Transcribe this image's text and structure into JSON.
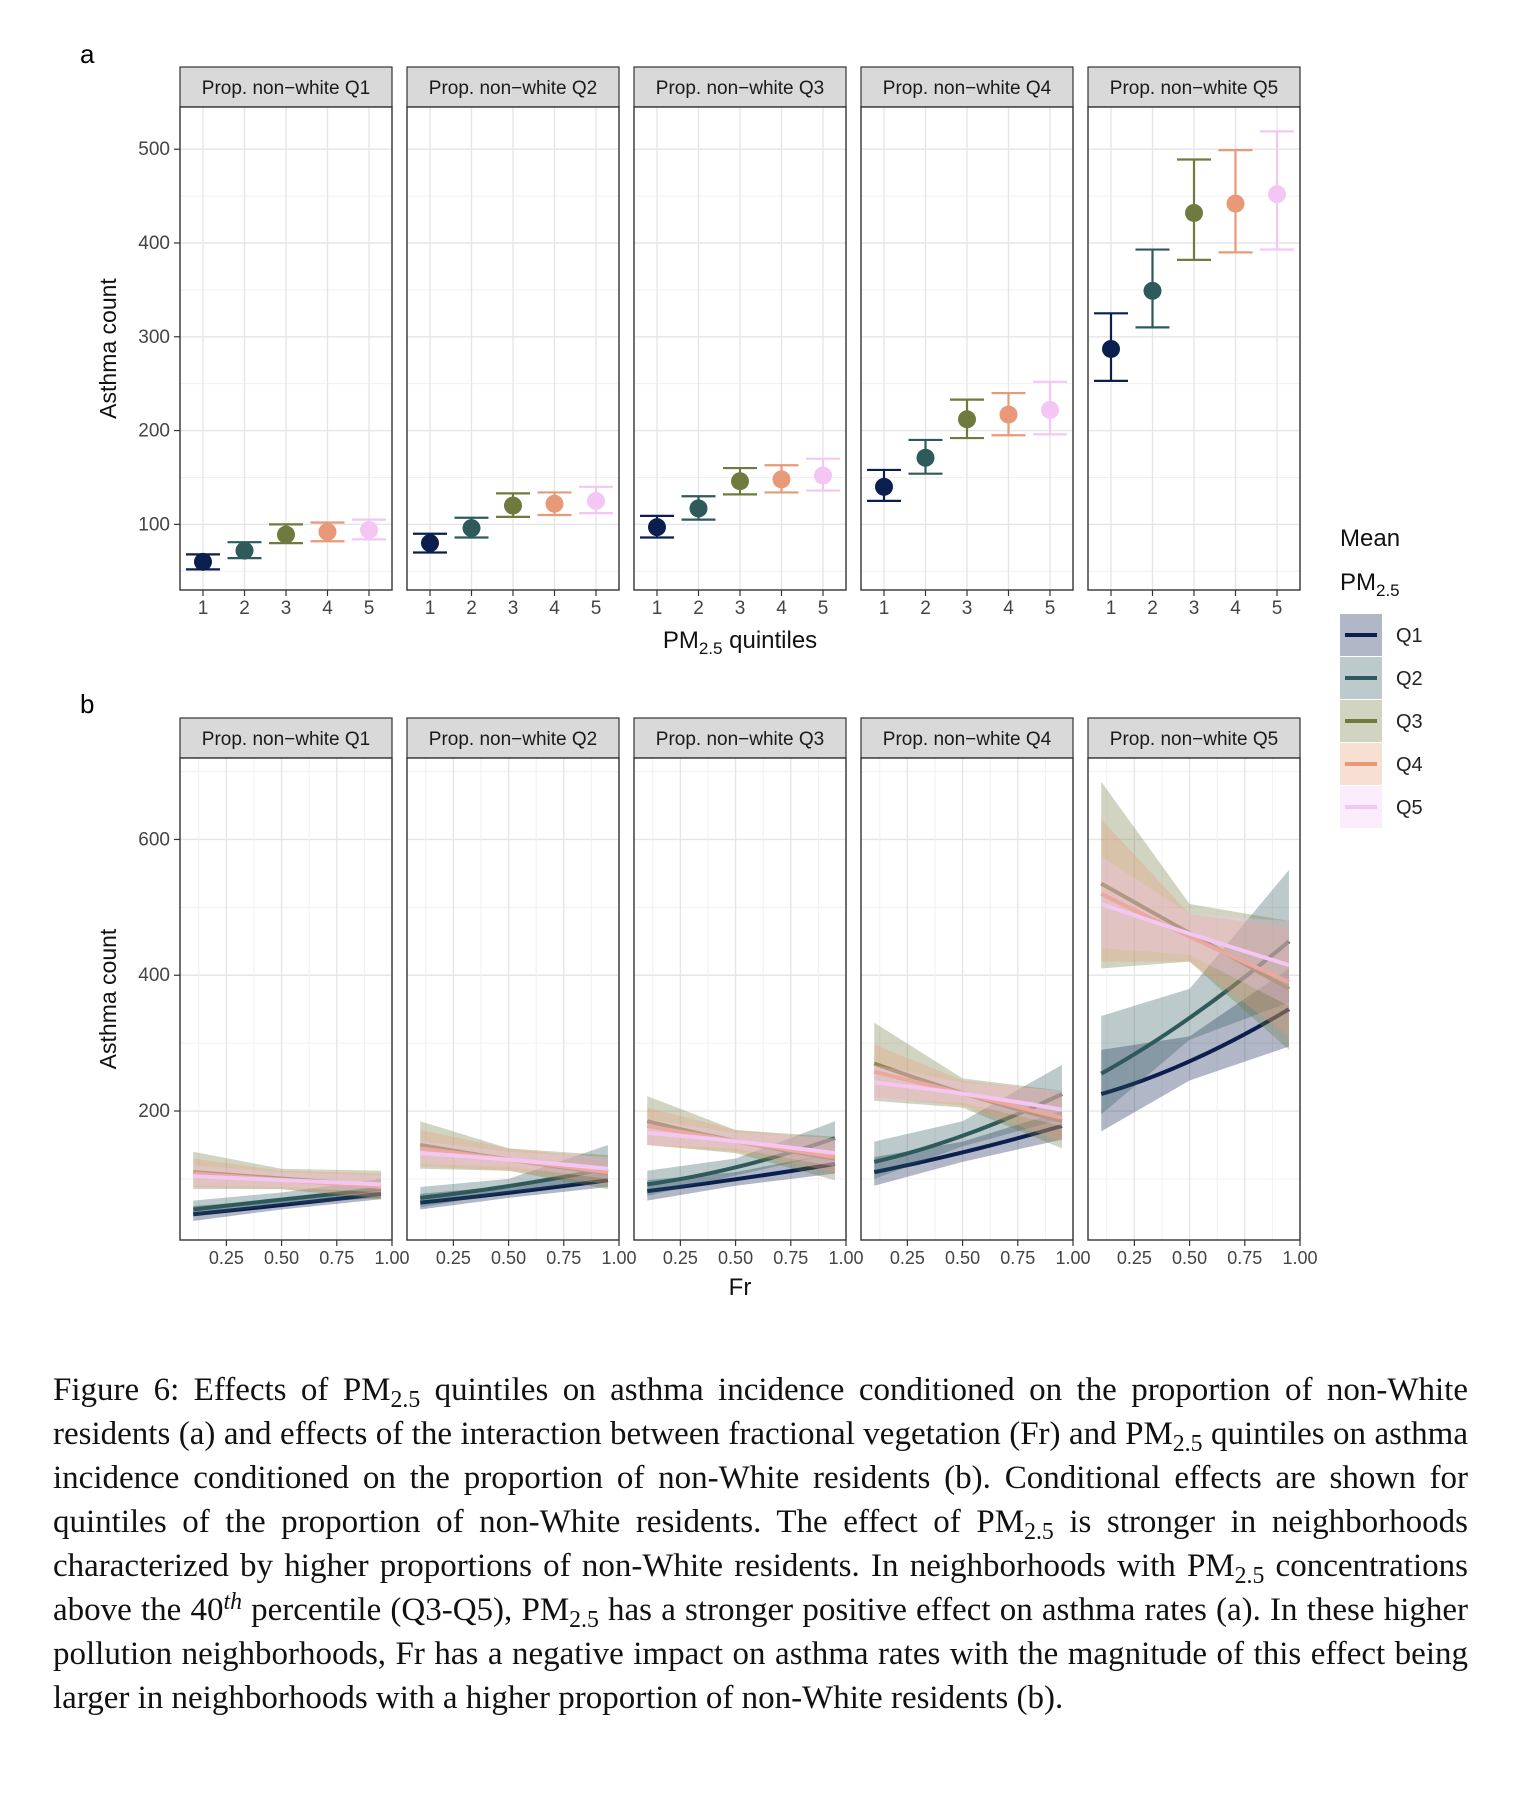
{
  "panel_labels": {
    "a": "a",
    "b": "b"
  },
  "colors": {
    "Q1": "#0b1f4f",
    "Q2": "#2f5a5c",
    "Q3": "#6f7a3e",
    "Q4": "#e89a78",
    "Q5": "#f3c6f3"
  },
  "legend": {
    "title_line1": "Mean",
    "title_line2_main": "PM",
    "title_line2_sub": "2.5",
    "items": [
      "Q1",
      "Q2",
      "Q3",
      "Q4",
      "Q5"
    ]
  },
  "chart_data": [
    {
      "type": "scatter",
      "panel": "a",
      "facets": [
        "Prop. non−white Q1",
        "Prop. non−white Q2",
        "Prop. non−white Q3",
        "Prop. non−white Q4",
        "Prop. non−white Q5"
      ],
      "xlabel_main": "PM",
      "xlabel_sub": "2.5",
      "xlabel_rest": " quintiles",
      "ylabel": "Asthma count",
      "x_ticks": [
        "1",
        "2",
        "3",
        "4",
        "5"
      ],
      "y_ticks": [
        100,
        200,
        300,
        400,
        500
      ],
      "ylim": [
        30,
        545
      ],
      "grid": true,
      "series_names": [
        "Q1",
        "Q2",
        "Q3",
        "Q4",
        "Q5"
      ],
      "points": [
        [
          [
            60,
            52,
            68
          ],
          [
            72,
            64,
            81
          ],
          [
            89,
            80,
            100
          ],
          [
            92,
            82,
            102
          ],
          [
            94,
            84,
            105
          ]
        ],
        [
          [
            80,
            70,
            90
          ],
          [
            96,
            86,
            107
          ],
          [
            120,
            108,
            133
          ],
          [
            122,
            110,
            134
          ],
          [
            125,
            112,
            140
          ]
        ],
        [
          [
            97,
            86,
            109
          ],
          [
            117,
            105,
            130
          ],
          [
            146,
            132,
            160
          ],
          [
            148,
            134,
            163
          ],
          [
            152,
            136,
            170
          ]
        ],
        [
          [
            140,
            125,
            158
          ],
          [
            171,
            154,
            190
          ],
          [
            212,
            192,
            233
          ],
          [
            217,
            195,
            240
          ],
          [
            222,
            196,
            252
          ]
        ],
        [
          [
            287,
            253,
            325
          ],
          [
            349,
            310,
            393
          ],
          [
            432,
            382,
            489
          ],
          [
            442,
            390,
            499
          ],
          [
            452,
            393,
            519
          ]
        ]
      ]
    },
    {
      "type": "line",
      "panel": "b",
      "facets": [
        "Prop. non−white Q1",
        "Prop. non−white Q2",
        "Prop. non−white Q3",
        "Prop. non−white Q4",
        "Prop. non−white Q5"
      ],
      "xlabel": "Fr",
      "ylabel": "Asthma count",
      "x_ticks": [
        "0.25",
        "0.50",
        "0.75",
        "1.00"
      ],
      "xlim": [
        0.04,
        1.0
      ],
      "y_ticks": [
        200,
        400,
        600
      ],
      "ylim": [
        10,
        720
      ],
      "grid": true,
      "x": [
        0.1,
        0.5,
        0.95
      ],
      "series_names": [
        "Q1",
        "Q2",
        "Q3",
        "Q4",
        "Q5"
      ],
      "facet_series": [
        [
          {
            "y": [
              48,
              62,
              78
            ],
            "lo": [
              38,
              55,
              70
            ],
            "hi": [
              60,
              70,
              90
            ]
          },
          {
            "y": [
              55,
              70,
              85
            ],
            "lo": [
              45,
              62,
              72
            ],
            "hi": [
              68,
              80,
              100
            ]
          },
          {
            "y": [
              110,
              100,
              90
            ],
            "lo": [
              85,
              85,
              70
            ],
            "hi": [
              140,
              115,
              112
            ]
          },
          {
            "y": [
              108,
              98,
              88
            ],
            "lo": [
              88,
              85,
              72
            ],
            "hi": [
              130,
              112,
              108
            ]
          },
          {
            "y": [
              104,
              98,
              92
            ],
            "lo": [
              90,
              88,
              80
            ],
            "hi": [
              120,
              110,
              105
            ]
          }
        ],
        [
          {
            "y": [
              65,
              80,
              98
            ],
            "lo": [
              55,
              72,
              88
            ],
            "hi": [
              78,
              90,
              110
            ]
          },
          {
            "y": [
              72,
              90,
              115
            ],
            "lo": [
              58,
              80,
              98
            ],
            "hi": [
              88,
              100,
              150
            ]
          },
          {
            "y": [
              150,
              128,
              108
            ],
            "lo": [
              115,
              112,
              85
            ],
            "hi": [
              185,
              145,
              135
            ]
          },
          {
            "y": [
              145,
              128,
              110
            ],
            "lo": [
              118,
              112,
              92
            ],
            "hi": [
              172,
              145,
              130
            ]
          },
          {
            "y": [
              138,
              128,
              115
            ],
            "lo": [
              122,
              118,
              100
            ],
            "hi": [
              156,
              140,
              132
            ]
          }
        ],
        [
          {
            "y": [
              82,
              100,
              122
            ],
            "lo": [
              68,
              90,
              108
            ],
            "hi": [
              98,
              110,
              138
            ]
          },
          {
            "y": [
              92,
              118,
              160
            ],
            "lo": [
              75,
              105,
              138
            ],
            "hi": [
              112,
              130,
              185
            ]
          },
          {
            "y": [
              185,
              155,
              130
            ],
            "lo": [
              150,
              138,
              98
            ],
            "hi": [
              222,
              172,
              162
            ]
          },
          {
            "y": [
              178,
              155,
              132
            ],
            "lo": [
              150,
              140,
              110
            ],
            "hi": [
              205,
              172,
              158
            ]
          },
          {
            "y": [
              168,
              155,
              138
            ],
            "lo": [
              150,
              145,
              118
            ],
            "hi": [
              188,
              168,
              160
            ]
          }
        ],
        [
          {
            "y": [
              110,
              140,
              178
            ],
            "lo": [
              90,
              125,
              158
            ],
            "hi": [
              132,
              155,
              200
            ]
          },
          {
            "y": [
              125,
              165,
              225
            ],
            "lo": [
              100,
              148,
              188
            ],
            "hi": [
              155,
              185,
              268
            ]
          },
          {
            "y": [
              270,
              225,
              185
            ],
            "lo": [
              215,
              205,
              145
            ],
            "hi": [
              330,
              248,
              230
            ]
          },
          {
            "y": [
              258,
              225,
              190
            ],
            "lo": [
              220,
              208,
              155
            ],
            "hi": [
              298,
              245,
              228
            ]
          },
          {
            "y": [
              242,
              225,
              202
            ],
            "lo": [
              218,
              212,
              178
            ],
            "hi": [
              268,
              242,
              230
            ]
          }
        ],
        [
          {
            "y": [
              225,
              275,
              350
            ],
            "lo": [
              170,
              245,
              295
            ],
            "hi": [
              290,
              310,
              410
            ]
          },
          {
            "y": [
              255,
              340,
              450
            ],
            "lo": [
              195,
              305,
              360
            ],
            "hi": [
              340,
              380,
              555
            ]
          },
          {
            "y": [
              535,
              460,
              380
            ],
            "lo": [
              410,
              420,
              290
            ],
            "hi": [
              685,
              505,
              480
            ]
          },
          {
            "y": [
              520,
              455,
              390
            ],
            "lo": [
              420,
              420,
              310
            ],
            "hi": [
              630,
              490,
              470
            ]
          },
          {
            "y": [
              505,
              460,
              415
            ],
            "lo": [
              440,
              430,
              355
            ],
            "hi": [
              575,
              490,
              480
            ]
          }
        ]
      ]
    }
  ],
  "caption": {
    "p1": "Figure 6:  Effects of ",
    "pm": "PM",
    "sub": "2.5",
    "p2": " quintiles on asthma incidence conditioned on the proportion of non-White residents (a) and effects of the interaction between fractional vegetation (Fr) and ",
    "p3": " quintiles on asthma incidence conditioned on the proportion of non-White residents (b). Conditional effects are shown for quintiles of the proportion of non-White residents. The effect of ",
    "p4": " is stronger in neighborhoods characterized by higher proportions of non-White residents. In neighborhoods with ",
    "p5": " concentrations above the 40",
    "sup": "th",
    "p6": " percentile (Q3-Q5), ",
    "p7": " has a stronger positive effect on asthma rates (a).  In these higher pollution neighborhoods, Fr has a negative impact on asthma rates with the magnitude of this effect being larger in neighborhoods with a higher proportion of non-White residents (b)."
  }
}
